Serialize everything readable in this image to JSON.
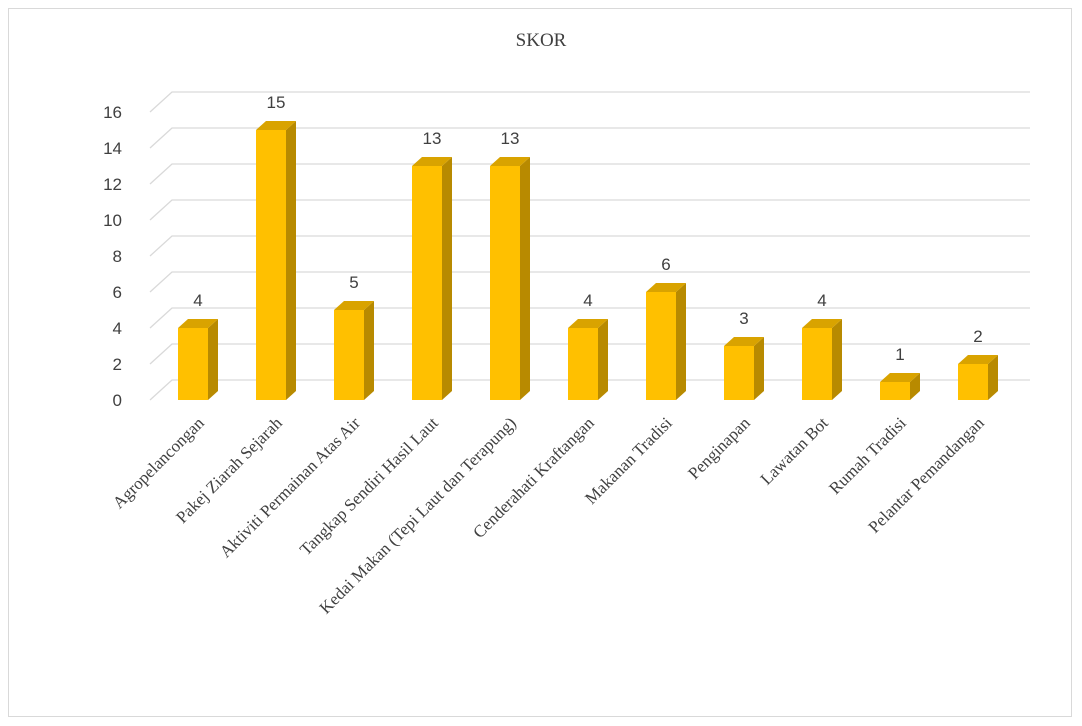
{
  "chart_data": {
    "type": "bar",
    "title": "SKOR",
    "xlabel": "",
    "ylabel": "",
    "categories": [
      "Agropelancongan",
      "Pakej Ziarah Sejarah",
      "Aktiviti Permainan Atas Air",
      "Tangkap Sendiri Hasil Laut",
      "Kedai Makan (Tepi Laut dan Terapung)",
      "Cenderahati Kraftangan",
      "Makanan Tradisi",
      "Penginapan",
      "Lawatan Bot",
      "Rumah Tradisi",
      "Pelantar Pemandangan"
    ],
    "values": [
      4,
      15,
      5,
      13,
      13,
      4,
      6,
      3,
      4,
      1,
      2
    ],
    "ylim": [
      0,
      16
    ],
    "yticks": [
      0,
      2,
      4,
      6,
      8,
      10,
      12,
      14,
      16
    ],
    "grid": true,
    "legend": "none",
    "style": "3d-column",
    "colors": {
      "bar_front": "#ffc000",
      "bar_side": "#b88a00",
      "bar_top": "#d9a300",
      "grid": "#d9d9d9",
      "text": "#404040"
    }
  }
}
